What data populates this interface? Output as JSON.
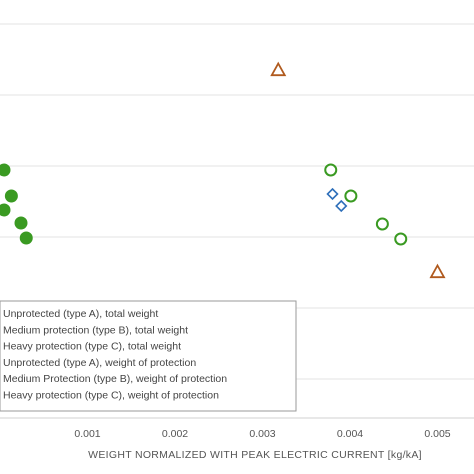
{
  "chart_data": {
    "type": "scatter",
    "title": "",
    "xlabel": "WEIGHT NORMALIZED WITH PEAK ELECTRIC CURRENT [kg/kA]",
    "ylabel": "",
    "xlim": [
      0.0,
      0.005
    ],
    "x_ticks": [
      0.001,
      0.002,
      0.003,
      0.004,
      0.005
    ],
    "x_tick_labels": [
      "0.001",
      "0.002",
      "0.003",
      "0.004",
      "0.005"
    ],
    "grid": "horizontal",
    "legend_position": "bottom-left",
    "series": [
      {
        "name": "Unprotected (type A), total weight",
        "marker": "circle-filled",
        "color": "#3a9a22",
        "points": [
          {
            "x": 3e-05,
            "y": 170
          },
          {
            "x": 0.00013,
            "y": 196
          },
          {
            "x": 0.00024,
            "y": 223
          },
          {
            "x": 0.0003,
            "y": 238
          },
          {
            "x": 0.0,
            "y": 210
          }
        ]
      },
      {
        "name": "Medium protection (type B), total weight",
        "marker": "diamond-open",
        "color": "#2e6fba",
        "points": []
      },
      {
        "name": "Heavy protection (type C), total weight",
        "marker": "triangle-open",
        "color": "#b05a1e",
        "points": [
          {
            "x": 0.00318,
            "y": 70
          },
          {
            "x": 0.005,
            "y": 272
          }
        ]
      },
      {
        "name": "Unprotected (type A), weight of protection",
        "marker": "circle-open",
        "color": "#3a9a22",
        "points": [
          {
            "x": 0.00378,
            "y": 170
          },
          {
            "x": 0.00401,
            "y": 196
          },
          {
            "x": 0.00437,
            "y": 224
          },
          {
            "x": 0.00458,
            "y": 239
          }
        ]
      },
      {
        "name": "Medium Protection (type B), weight of protection",
        "marker": "diamond-open",
        "color": "#2e6fba",
        "points": [
          {
            "x": 0.0038,
            "y": 194
          },
          {
            "x": 0.0039,
            "y": 206
          }
        ]
      },
      {
        "name": "Heavy protection (type C), weight of protection",
        "marker": "triangle-open",
        "color": "#b05a1e",
        "points": []
      }
    ]
  }
}
